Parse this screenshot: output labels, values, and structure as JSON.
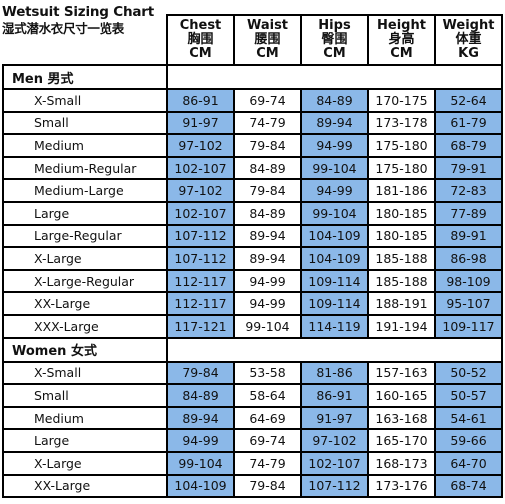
{
  "title": "Wetsuit Sizing Chart",
  "subtitle": "湿式潜水衣尺寸一览表",
  "columns": [
    {
      "name": "Chest",
      "cn": "胸围",
      "unit": "CM"
    },
    {
      "name": "Waist",
      "cn": "腰围",
      "unit": "CM"
    },
    {
      "name": "Hips",
      "cn": "臀围",
      "unit": "CM"
    },
    {
      "name": "Height",
      "cn": "身高",
      "unit": "CM"
    },
    {
      "name": "Weight",
      "cn": "体重",
      "unit": "KG"
    }
  ],
  "sections": [
    {
      "label": "Men 男式",
      "rows": [
        {
          "size": "X-Small",
          "values": [
            "86-91",
            "69-74",
            "84-89",
            "170-175",
            "52-64"
          ]
        },
        {
          "size": "Small",
          "values": [
            "91-97",
            "74-79",
            "89-94",
            "173-178",
            "61-79"
          ]
        },
        {
          "size": "Medium",
          "values": [
            "97-102",
            "79-84",
            "94-99",
            "175-180",
            "68-79"
          ]
        },
        {
          "size": "Medium-Regular",
          "values": [
            "102-107",
            "84-89",
            "99-104",
            "175-180",
            "79-91"
          ]
        },
        {
          "size": "Medium-Large",
          "values": [
            "97-102",
            "79-84",
            "94-99",
            "181-186",
            "72-83"
          ]
        },
        {
          "size": "Large",
          "values": [
            "102-107",
            "84-89",
            "99-104",
            "180-185",
            "77-89"
          ]
        },
        {
          "size": "Large-Regular",
          "values": [
            "107-112",
            "89-94",
            "104-109",
            "180-185",
            "89-91"
          ]
        },
        {
          "size": "X-Large",
          "values": [
            "107-112",
            "89-94",
            "104-109",
            "185-188",
            "86-98"
          ]
        },
        {
          "size": "X-Large-Regular",
          "values": [
            "112-117",
            "94-99",
            "109-114",
            "185-188",
            "98-109"
          ]
        },
        {
          "size": "XX-Large",
          "values": [
            "112-117",
            "94-99",
            "109-114",
            "188-191",
            "95-107"
          ]
        },
        {
          "size": "XXX-Large",
          "values": [
            "117-121",
            "99-104",
            "114-119",
            "191-194",
            "109-117"
          ]
        }
      ]
    },
    {
      "label": "Women 女式",
      "rows": [
        {
          "size": "X-Small",
          "values": [
            "79-84",
            "53-58",
            "81-86",
            "157-163",
            "50-52"
          ]
        },
        {
          "size": "Small",
          "values": [
            "84-89",
            "58-64",
            "86-91",
            "160-165",
            "50-57"
          ]
        },
        {
          "size": "Medium",
          "values": [
            "89-94",
            "64-69",
            "91-97",
            "163-168",
            "54-61"
          ]
        },
        {
          "size": "Large",
          "values": [
            "94-99",
            "69-74",
            "97-102",
            "165-170",
            "59-66"
          ]
        },
        {
          "size": "X-Large",
          "values": [
            "99-104",
            "74-79",
            "102-107",
            "168-173",
            "64-70"
          ]
        },
        {
          "size": "XX-Large",
          "values": [
            "104-109",
            "79-84",
            "107-112",
            "173-176",
            "68-74"
          ]
        }
      ]
    }
  ],
  "colors": {
    "highlight": "#8bb8e8",
    "plain": "#ffffff",
    "border": "#000000"
  }
}
